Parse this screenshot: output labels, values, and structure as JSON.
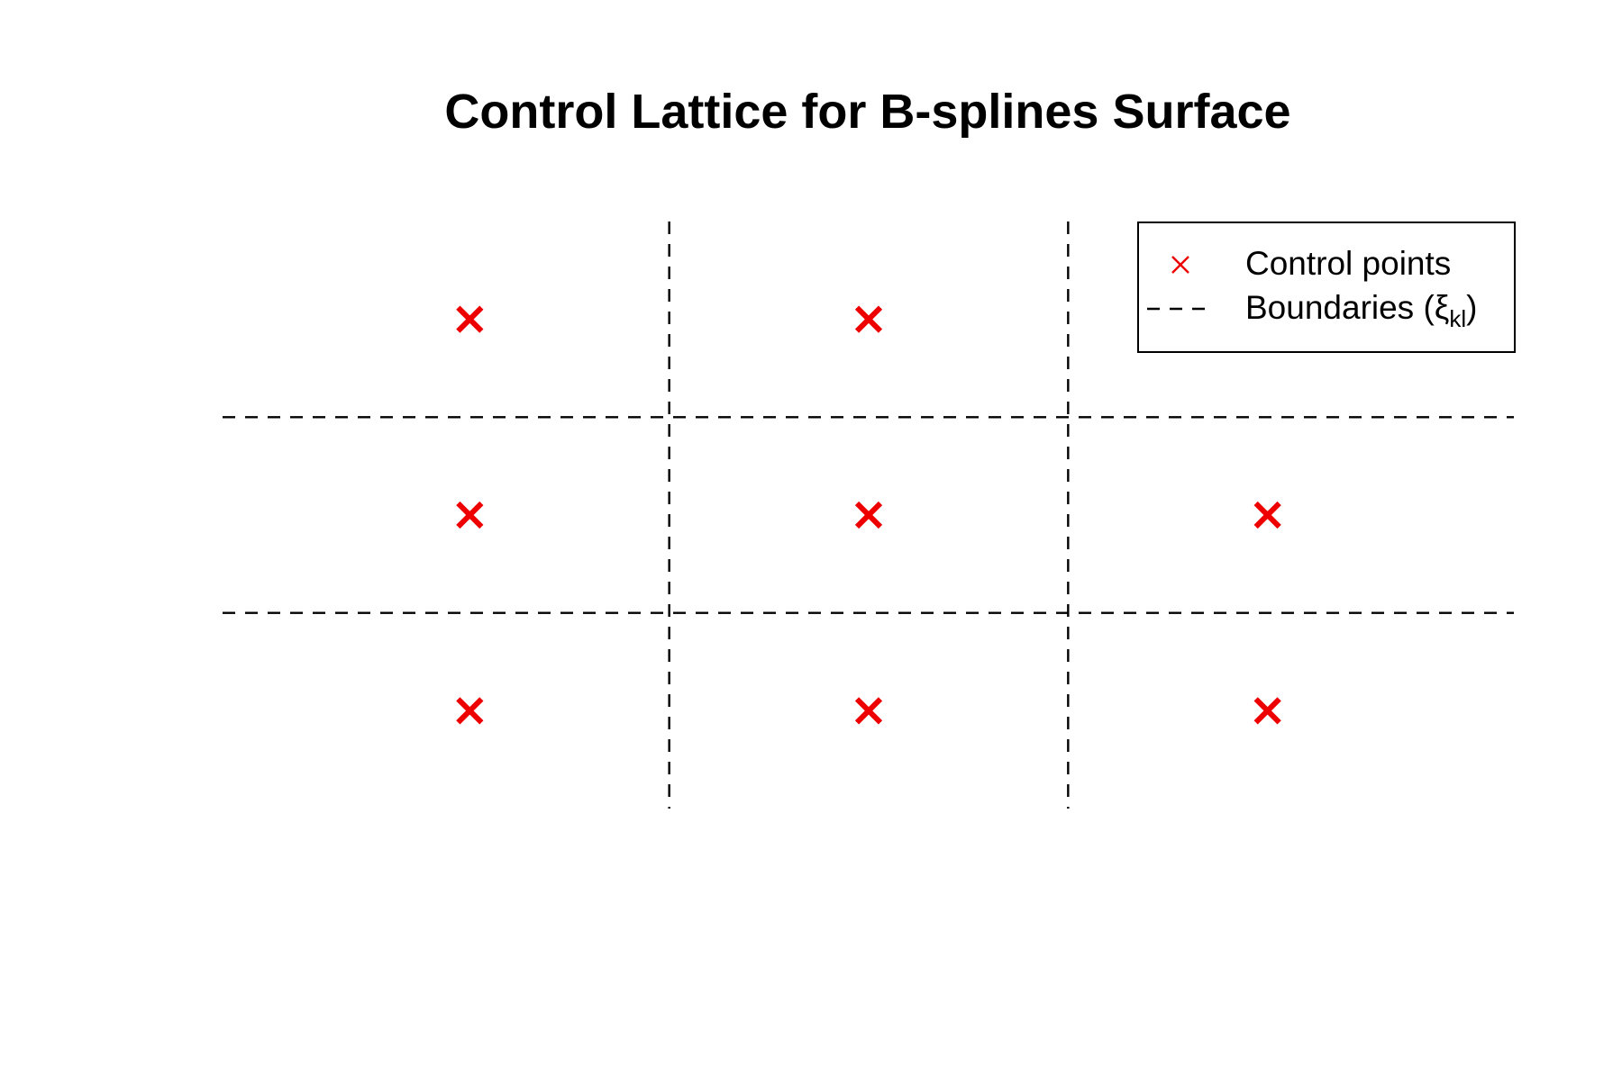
{
  "chart_data": {
    "type": "scatter",
    "title": "Control Lattice for B-splines Surface",
    "xlabel": "",
    "ylabel": "",
    "xlim": [
      0,
      3
    ],
    "ylim": [
      0,
      3
    ],
    "axes_visible": false,
    "grid": false,
    "legend_position": "top-right",
    "colors": {
      "points": "#ee0000",
      "boundaries": "#000000"
    },
    "series": [
      {
        "name": "Control points",
        "marker": "x",
        "points": [
          {
            "x": 0.5,
            "y": 2.5
          },
          {
            "x": 1.5,
            "y": 2.5
          },
          {
            "x": 0.5,
            "y": 1.5
          },
          {
            "x": 1.5,
            "y": 1.5
          },
          {
            "x": 2.5,
            "y": 1.5
          },
          {
            "x": 0.5,
            "y": 0.5
          },
          {
            "x": 1.5,
            "y": 0.5
          },
          {
            "x": 2.5,
            "y": 0.5
          }
        ]
      }
    ],
    "boundaries": {
      "legend_label": "Boundaries (ξ",
      "legend_subscript": "kl",
      "legend_suffix": ")",
      "vertical_x": [
        1,
        2
      ],
      "horizontal_y": [
        1,
        2
      ]
    }
  }
}
